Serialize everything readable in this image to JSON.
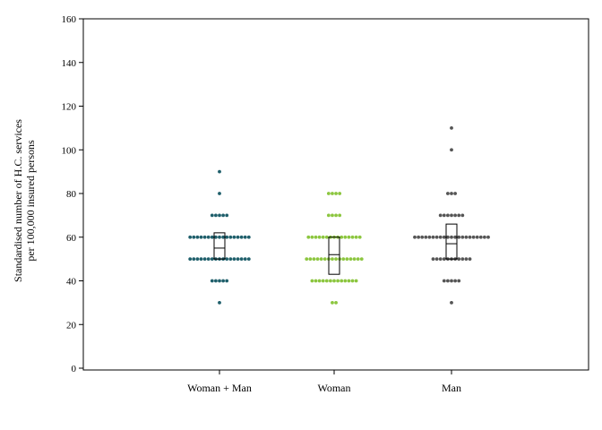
{
  "chart_data": {
    "type": "scatter",
    "subtype": "dot plot with box summary",
    "title": "",
    "xlabel": "",
    "ylabel_lines": [
      "Standardised number of H.C. services",
      "per 100,000 insured persons"
    ],
    "ylim": [
      0,
      160
    ],
    "yticks": [
      0,
      20,
      40,
      60,
      80,
      100,
      120,
      140,
      160
    ],
    "grid": false,
    "legend": "none",
    "categories": [
      "Woman + Man",
      "Woman",
      "Man"
    ],
    "series": [
      {
        "color": "#1f5f6b",
        "values": [
          30,
          40,
          40,
          40,
          40,
          40,
          50,
          50,
          50,
          50,
          50,
          50,
          50,
          50,
          50,
          50,
          50,
          50,
          50,
          50,
          50,
          50,
          50,
          60,
          60,
          60,
          60,
          60,
          60,
          60,
          60,
          60,
          60,
          60,
          60,
          60,
          60,
          60,
          60,
          60,
          70,
          70,
          70,
          70,
          70,
          80,
          90
        ],
        "box": {
          "q1": 50,
          "median": 55,
          "q3": 62
        }
      },
      {
        "color": "#8cc63f",
        "values": [
          30,
          30,
          40,
          40,
          40,
          40,
          40,
          40,
          40,
          40,
          40,
          40,
          40,
          40,
          40,
          50,
          50,
          50,
          50,
          50,
          50,
          50,
          50,
          50,
          50,
          50,
          50,
          50,
          50,
          50,
          50,
          60,
          60,
          60,
          60,
          60,
          60,
          60,
          60,
          60,
          60,
          60,
          60,
          60,
          60,
          60,
          70,
          70,
          70,
          70,
          80,
          80,
          80,
          80
        ],
        "box": {
          "q1": 43,
          "median": 52,
          "q3": 60
        }
      },
      {
        "color": "#555555",
        "values": [
          30,
          40,
          40,
          40,
          40,
          40,
          50,
          50,
          50,
          50,
          50,
          50,
          50,
          50,
          50,
          50,
          50,
          60,
          60,
          60,
          60,
          60,
          60,
          60,
          60,
          60,
          60,
          60,
          60,
          60,
          60,
          60,
          60,
          60,
          60,
          60,
          60,
          60,
          70,
          70,
          70,
          70,
          70,
          70,
          70,
          80,
          80,
          80,
          100,
          110
        ],
        "box": {
          "q1": 50,
          "median": 57,
          "q3": 66
        }
      }
    ]
  }
}
